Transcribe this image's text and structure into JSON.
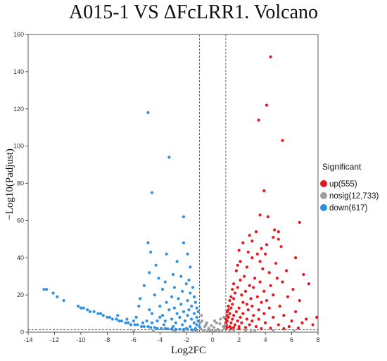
{
  "chart_data": {
    "type": "scatter",
    "title": "A015-1 VS ΔFcLRR1.  Volcano",
    "xlabel": "Log2FC",
    "ylabel": "−Log10(Padjust)",
    "xlim": [
      -14,
      8
    ],
    "ylim": [
      0,
      160
    ],
    "xticks": [
      -14,
      -12,
      -10,
      -8,
      -6,
      -4,
      -2,
      0,
      2,
      4,
      6,
      8
    ],
    "yticks": [
      0,
      20,
      40,
      60,
      80,
      100,
      120,
      140,
      160
    ],
    "thresholds": {
      "log2fc": [
        -1,
        1
      ],
      "neg_log10_padj": 1.3
    },
    "legend_position": "right",
    "legend_title": "Significant",
    "grid": false,
    "series": [
      {
        "name": "up(555)",
        "color": "#e8151b",
        "points": [
          [
            4.4,
            148
          ],
          [
            4.1,
            122
          ],
          [
            3.5,
            114
          ],
          [
            5.3,
            103
          ],
          [
            3.9,
            76
          ],
          [
            6.6,
            59
          ],
          [
            3.6,
            63
          ],
          [
            4.2,
            62
          ],
          [
            4.7,
            55
          ],
          [
            3.3,
            54
          ],
          [
            5.0,
            54
          ],
          [
            2.8,
            52
          ],
          [
            4.6,
            51
          ],
          [
            5.0,
            50
          ],
          [
            3.0,
            49
          ],
          [
            2.3,
            48
          ],
          [
            4.1,
            47
          ],
          [
            5.2,
            46
          ],
          [
            3.7,
            45
          ],
          [
            2.0,
            44
          ],
          [
            2.7,
            43
          ],
          [
            3.4,
            42
          ],
          [
            4.0,
            42
          ],
          [
            3.0,
            40
          ],
          [
            6.3,
            40
          ],
          [
            2.1,
            38
          ],
          [
            3.6,
            38
          ],
          [
            4.8,
            37
          ],
          [
            1.9,
            36
          ],
          [
            2.6,
            35
          ],
          [
            3.8,
            34
          ],
          [
            5.6,
            33
          ],
          [
            1.8,
            33
          ],
          [
            4.3,
            32
          ],
          [
            6.9,
            31
          ],
          [
            2.4,
            30
          ],
          [
            3.2,
            29
          ],
          [
            4.9,
            29
          ],
          [
            2.1,
            28
          ],
          [
            3.6,
            27
          ],
          [
            5.3,
            27
          ],
          [
            7.3,
            26
          ],
          [
            1.6,
            26
          ],
          [
            2.8,
            25
          ],
          [
            4.4,
            25
          ],
          [
            1.9,
            24
          ],
          [
            3.1,
            24
          ],
          [
            6.1,
            23
          ],
          [
            1.5,
            23
          ],
          [
            2.5,
            22
          ],
          [
            3.9,
            22
          ],
          [
            1.7,
            21
          ],
          [
            4.6,
            20
          ],
          [
            2.2,
            20
          ],
          [
            5.7,
            19
          ],
          [
            1.4,
            19
          ],
          [
            3.4,
            19
          ],
          [
            1.6,
            18
          ],
          [
            2.9,
            18
          ],
          [
            4.1,
            17
          ],
          [
            6.6,
            17
          ],
          [
            1.3,
            17
          ],
          [
            2.3,
            16
          ],
          [
            3.7,
            16
          ],
          [
            1.5,
            15
          ],
          [
            2.6,
            15
          ],
          [
            5.1,
            14
          ],
          [
            1.2,
            14
          ],
          [
            3.0,
            14
          ],
          [
            1.4,
            13
          ],
          [
            2.0,
            13
          ],
          [
            4.3,
            13
          ],
          [
            1.2,
            12
          ],
          [
            2.7,
            12
          ],
          [
            3.5,
            12
          ],
          [
            1.1,
            11
          ],
          [
            1.8,
            11
          ],
          [
            6.3,
            11
          ],
          [
            1.3,
            10
          ],
          [
            2.3,
            10
          ],
          [
            3.9,
            10
          ],
          [
            1.1,
            9
          ],
          [
            1.6,
            9
          ],
          [
            3.1,
            9
          ],
          [
            5.4,
            9
          ],
          [
            1.2,
            8
          ],
          [
            2.1,
            8
          ],
          [
            4.6,
            8
          ],
          [
            7.9,
            8
          ],
          [
            1.0,
            7
          ],
          [
            1.5,
            7
          ],
          [
            2.6,
            7
          ],
          [
            3.5,
            7
          ],
          [
            7.1,
            7
          ],
          [
            1.1,
            6
          ],
          [
            1.9,
            6
          ],
          [
            3.0,
            6
          ],
          [
            6.0,
            6
          ],
          [
            1.0,
            5
          ],
          [
            1.4,
            5
          ],
          [
            2.2,
            5
          ],
          [
            4.0,
            5
          ],
          [
            6.8,
            5
          ],
          [
            1.05,
            4
          ],
          [
            1.7,
            4
          ],
          [
            2.8,
            4
          ],
          [
            5.0,
            4
          ],
          [
            7.6,
            4
          ],
          [
            1.0,
            3
          ],
          [
            1.3,
            3
          ],
          [
            2.0,
            3
          ],
          [
            3.3,
            3
          ],
          [
            5.8,
            3
          ],
          [
            1.1,
            2.5
          ],
          [
            1.6,
            2.5
          ],
          [
            2.5,
            2.5
          ],
          [
            4.4,
            2.2
          ],
          [
            6.5,
            2.2
          ],
          [
            1.0,
            2
          ],
          [
            1.4,
            2
          ],
          [
            2.0,
            1.9
          ],
          [
            3.7,
            1.9
          ],
          [
            5.4,
            1.9
          ]
        ]
      },
      {
        "name": "nosig(12,733)",
        "color": "#9e9e9e",
        "points": [
          [
            -0.8,
            6
          ],
          [
            -0.5,
            4
          ],
          [
            0.3,
            5
          ],
          [
            0.6,
            7
          ],
          [
            0.8,
            3
          ],
          [
            -0.6,
            3
          ],
          [
            -0.3,
            2
          ],
          [
            0.1,
            2.5
          ],
          [
            0.4,
            1.5
          ],
          [
            -0.9,
            1.8
          ],
          [
            0.9,
            2.2
          ],
          [
            -0.2,
            1
          ],
          [
            0.2,
            0.8
          ],
          [
            -0.7,
            0.6
          ],
          [
            0.7,
            0.5
          ],
          [
            -0.4,
            0.4
          ],
          [
            0.5,
            0.3
          ],
          [
            0,
            0.3
          ],
          [
            -1.5,
            1
          ],
          [
            1.6,
            1.1
          ],
          [
            -2.2,
            0.8
          ],
          [
            2.5,
            0.9
          ],
          [
            -3.0,
            0.6
          ],
          [
            3.2,
            0.7
          ],
          [
            -4.5,
            0.5
          ],
          [
            4.6,
            0.6
          ],
          [
            -6.0,
            0.4
          ],
          [
            6.2,
            0.5
          ],
          [
            -1.2,
            0.4
          ],
          [
            1.3,
            0.4
          ],
          [
            -2.8,
            0.3
          ],
          [
            2.9,
            0.3
          ],
          [
            -0.1,
            3.5
          ],
          [
            0.55,
            4.5
          ],
          [
            -0.45,
            5
          ],
          [
            0.85,
            8
          ],
          [
            -0.85,
            9
          ],
          [
            0.95,
            4
          ],
          [
            -0.95,
            5
          ],
          [
            0.15,
            6
          ]
        ]
      },
      {
        "name": "down(617)",
        "color": "#2f8fe0",
        "points": [
          [
            -4.9,
            118
          ],
          [
            -3.3,
            94
          ],
          [
            -4.6,
            75
          ],
          [
            -2.2,
            62
          ],
          [
            -4.9,
            48
          ],
          [
            -2.2,
            48
          ],
          [
            -4.7,
            43
          ],
          [
            -3.5,
            42
          ],
          [
            -1.9,
            42
          ],
          [
            -2.7,
            38
          ],
          [
            -4.3,
            36
          ],
          [
            -1.7,
            35
          ],
          [
            -4.8,
            32
          ],
          [
            -3.0,
            31
          ],
          [
            -2.4,
            30
          ],
          [
            -4.1,
            29
          ],
          [
            -1.8,
            28
          ],
          [
            -3.6,
            27
          ],
          [
            -2.0,
            26
          ],
          [
            -5.2,
            25
          ],
          [
            -2.9,
            24
          ],
          [
            -1.5,
            24
          ],
          [
            -3.8,
            23
          ],
          [
            -2.3,
            22
          ],
          [
            -1.7,
            21
          ],
          [
            -4.4,
            20
          ],
          [
            -3.1,
            19
          ],
          [
            -1.4,
            19
          ],
          [
            -2.6,
            18
          ],
          [
            -5.5,
            18
          ],
          [
            -1.9,
            17
          ],
          [
            -3.5,
            16
          ],
          [
            -1.3,
            16
          ],
          [
            -2.4,
            15
          ],
          [
            -4.0,
            14
          ],
          [
            -1.6,
            14
          ],
          [
            -2.9,
            13
          ],
          [
            -1.2,
            13
          ],
          [
            -3.3,
            12
          ],
          [
            -1.8,
            12
          ],
          [
            -2.2,
            11
          ],
          [
            -1.1,
            11
          ],
          [
            -4.6,
            10
          ],
          [
            -2.7,
            10
          ],
          [
            -1.4,
            10
          ],
          [
            -3.8,
            9
          ],
          [
            -1.9,
            9
          ],
          [
            -1.2,
            8
          ],
          [
            -2.5,
            8
          ],
          [
            -3.1,
            7
          ],
          [
            -1.6,
            7
          ],
          [
            -1.1,
            6
          ],
          [
            -2.1,
            6
          ],
          [
            -4.2,
            6
          ],
          [
            -1.4,
            5
          ],
          [
            -2.8,
            5
          ],
          [
            -3.7,
            4
          ],
          [
            -1.2,
            4
          ],
          [
            -2.3,
            4
          ],
          [
            -1.0,
            3
          ],
          [
            -1.7,
            3
          ],
          [
            -3.0,
            3
          ],
          [
            -1.3,
            2
          ],
          [
            -2.0,
            2
          ],
          [
            -12.8,
            23
          ],
          [
            -12.6,
            23
          ],
          [
            -12.1,
            21
          ],
          [
            -11.8,
            19
          ],
          [
            -11.3,
            17
          ],
          [
            -10.2,
            14
          ],
          [
            -10.0,
            13
          ],
          [
            -9.8,
            13
          ],
          [
            -9.5,
            12
          ],
          [
            -9.3,
            11
          ],
          [
            -9.0,
            11
          ],
          [
            -8.7,
            10
          ],
          [
            -8.5,
            10
          ],
          [
            -8.3,
            9
          ],
          [
            -8.0,
            8
          ],
          [
            -7.8,
            8
          ],
          [
            -7.6,
            7
          ],
          [
            -7.3,
            7
          ],
          [
            -7.1,
            6
          ],
          [
            -6.9,
            6
          ],
          [
            -6.6,
            5
          ],
          [
            -6.4,
            5
          ],
          [
            -6.2,
            4
          ],
          [
            -5.9,
            4
          ],
          [
            -5.7,
            4
          ],
          [
            -5.4,
            3
          ],
          [
            -5.2,
            3
          ],
          [
            -4.9,
            3
          ],
          [
            -4.7,
            2.5
          ],
          [
            -4.4,
            2.5
          ],
          [
            -4.2,
            2
          ],
          [
            -3.9,
            2
          ],
          [
            -3.6,
            2
          ],
          [
            -3.4,
            1.8
          ],
          [
            -3.1,
            1.8
          ],
          [
            -2.8,
            1.6
          ],
          [
            -2.5,
            1.6
          ],
          [
            -2.2,
            1.5
          ],
          [
            -1.9,
            1.5
          ],
          [
            -1.6,
            1.4
          ],
          [
            -1.3,
            1.4
          ],
          [
            -5.0,
            6
          ],
          [
            -4.6,
            5
          ],
          [
            -5.3,
            5
          ],
          [
            -6.0,
            6
          ],
          [
            -5.8,
            8
          ],
          [
            -6.5,
            7
          ],
          [
            -7.2,
            9
          ],
          [
            -4.0,
            8
          ],
          [
            -4.8,
            12
          ],
          [
            -5.6,
            14
          ],
          [
            -3.6,
            6
          ]
        ]
      }
    ]
  }
}
